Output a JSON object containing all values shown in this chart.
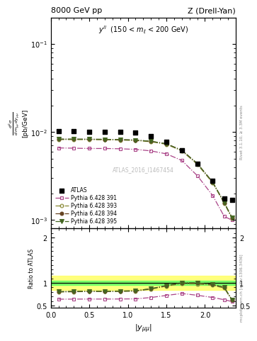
{
  "title_left": "8000 GeV pp",
  "title_right": "Z (Drell-Yan)",
  "annotation": "$y^{ll}$ (150 < $m_l$ < 200 GeV)",
  "watermark": "ATLAS_2016_I1467454",
  "rivet_label": "Rivet 3.1.10, ≥ 3.3M events",
  "mcplots_label": "mcplots.cern.ch [arXiv:1306.3436]",
  "xlabel": "|y_{mumu}|",
  "atlas_x": [
    0.1,
    0.3,
    0.5,
    0.7,
    0.9,
    1.1,
    1.3,
    1.5,
    1.7,
    1.9,
    2.1,
    2.25,
    2.35
  ],
  "atlas_y": [
    0.0103,
    0.0102,
    0.0101,
    0.0101,
    0.01,
    0.0098,
    0.009,
    0.0078,
    0.0062,
    0.0044,
    0.0028,
    0.00175,
    0.0017
  ],
  "py_x": [
    0.1,
    0.3,
    0.5,
    0.7,
    0.9,
    1.1,
    1.3,
    1.5,
    1.7,
    1.9,
    2.1,
    2.25,
    2.35
  ],
  "py391_y": [
    0.0066,
    0.00655,
    0.0065,
    0.0065,
    0.00645,
    0.00635,
    0.0061,
    0.00565,
    0.00475,
    0.0032,
    0.0019,
    0.0011,
    0.001
  ],
  "py393_y": [
    0.0082,
    0.0082,
    0.00818,
    0.00816,
    0.0081,
    0.008,
    0.00775,
    0.00725,
    0.0061,
    0.0043,
    0.00265,
    0.00155,
    0.00105
  ],
  "py394_y": [
    0.0083,
    0.0083,
    0.00828,
    0.00826,
    0.0082,
    0.0081,
    0.00785,
    0.00735,
    0.0062,
    0.0044,
    0.0027,
    0.00158,
    0.00107
  ],
  "py395_y": [
    0.0083,
    0.0083,
    0.00828,
    0.00826,
    0.0082,
    0.0081,
    0.00785,
    0.00735,
    0.0062,
    0.0044,
    0.0027,
    0.00158,
    0.00107
  ],
  "color_atlas": "#000000",
  "color_py391": "#aa4488",
  "color_py393": "#888833",
  "color_py394": "#664422",
  "color_py395": "#446622",
  "xlim": [
    0,
    2.4
  ],
  "ylim_main": [
    0.0008,
    0.2
  ],
  "ylim_ratio": [
    0.45,
    2.2
  ],
  "background_color": "#ffffff"
}
